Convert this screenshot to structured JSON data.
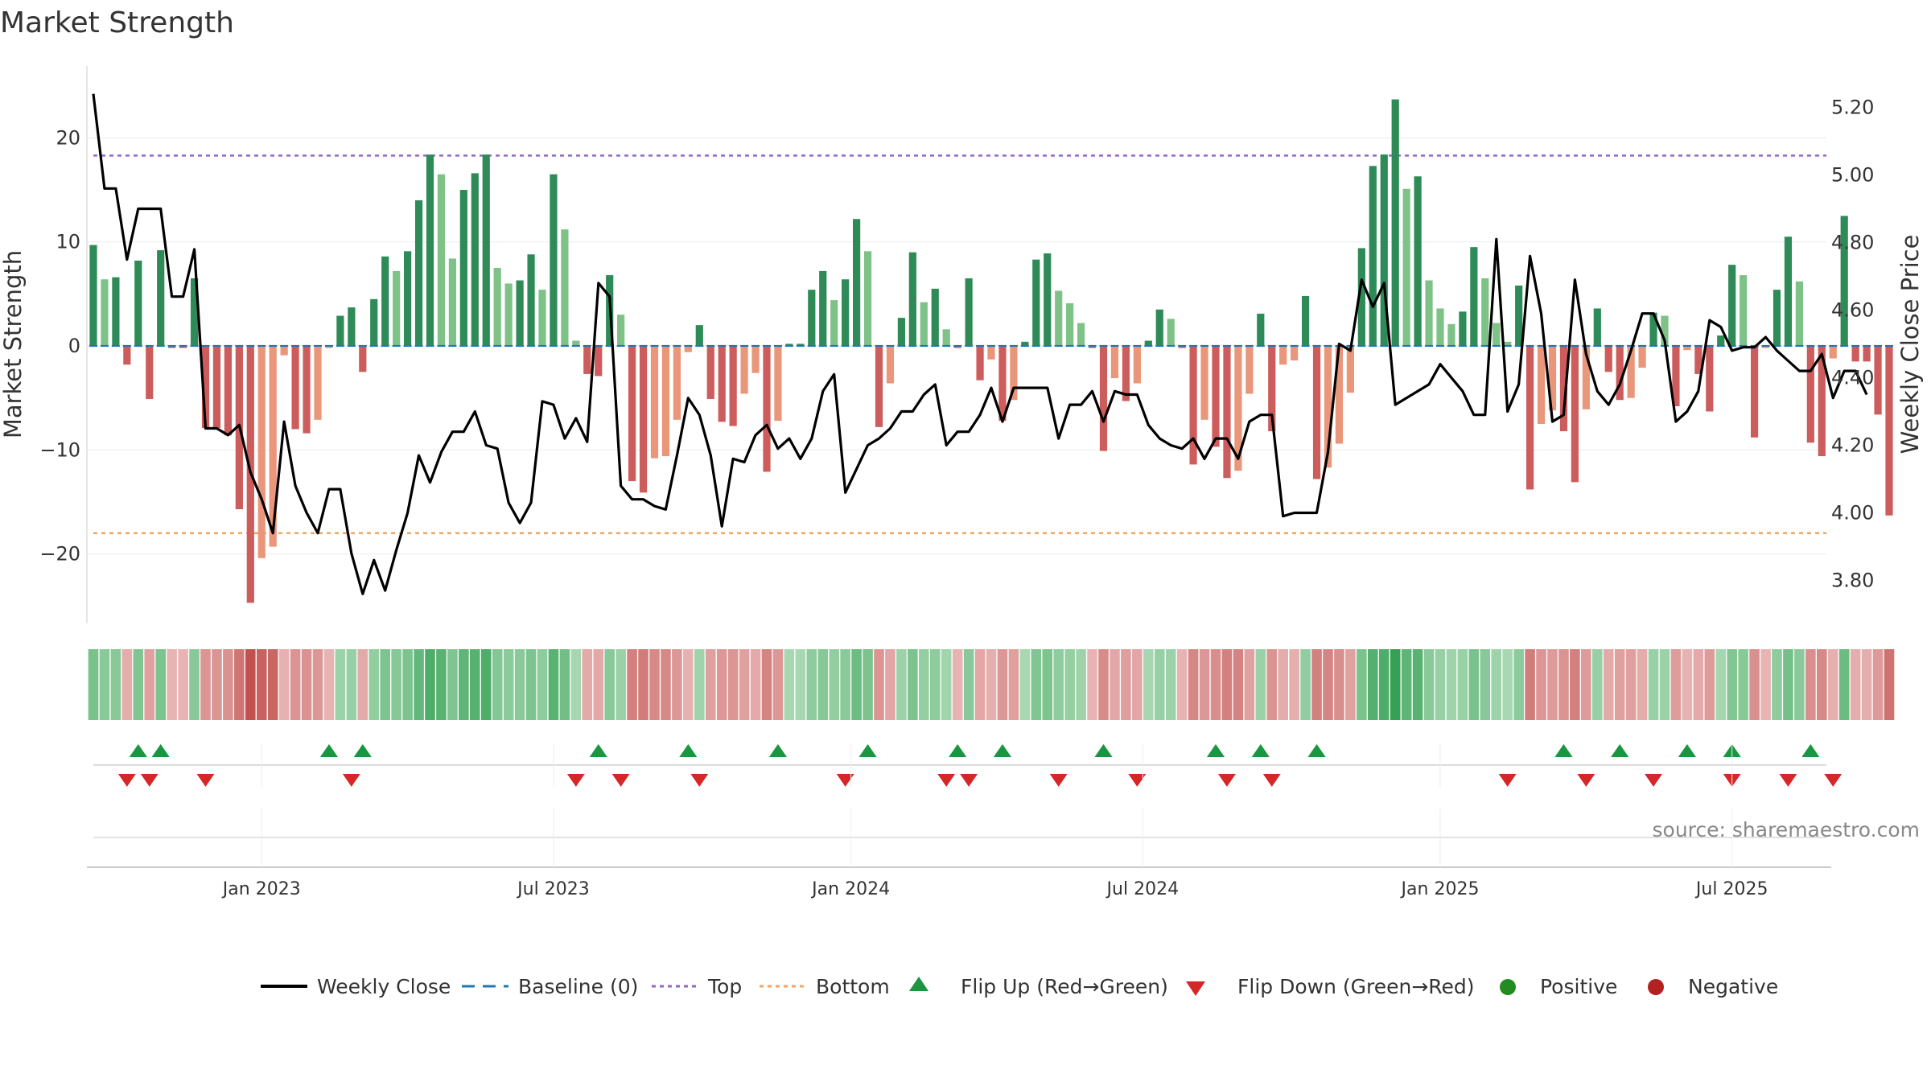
{
  "chart_data": {
    "type": "bar",
    "title": "Market Strength",
    "ylabel": "Market Strength",
    "y2label": "Weekly Close Price",
    "ylim": [
      -27,
      27
    ],
    "y2lim": [
      3.66,
      5.3
    ],
    "yticks": [
      -20,
      -10,
      0,
      10,
      20
    ],
    "y2ticks": [
      3.8,
      4.0,
      4.2,
      4.4,
      4.6,
      4.8,
      5.0,
      5.2
    ],
    "y2tick_labels": [
      "3.80",
      "4.00",
      "4.20",
      "4.40",
      "4.60",
      "4.80",
      "5.00",
      "5.20"
    ],
    "top_threshold": 18.3,
    "bottom_threshold": -18,
    "date_ticks": [
      {
        "label": "Jan 2023",
        "week": 15
      },
      {
        "label": "Jul 2023",
        "week": 41
      },
      {
        "label": "Jan 2024",
        "week": 67.5
      },
      {
        "label": "Jul 2024",
        "week": 93.5
      },
      {
        "label": "Jan 2025",
        "week": 120
      },
      {
        "label": "Jul 2025",
        "week": 146
      }
    ],
    "strength": [
      9.7,
      6.4,
      6.6,
      -1.8,
      8.2,
      -5.1,
      9.2,
      -0.2,
      -0.2,
      6.5,
      -7.9,
      -7.9,
      -8.6,
      -15.7,
      -24.7,
      -20.4,
      -19.3,
      -0.9,
      -8,
      -8.4,
      -7.1,
      -0.2,
      2.9,
      3.7,
      -2.5,
      4.5,
      8.6,
      7.2,
      9.1,
      14,
      18.4,
      16.5,
      8.4,
      15,
      16.6,
      18.4,
      7.5,
      6,
      6.3,
      8.8,
      5.4,
      16.5,
      11.2,
      0.5,
      -2.7,
      -2.9,
      6.8,
      3,
      -13,
      -14.1,
      -10.8,
      -10.6,
      -7.1,
      -0.6,
      2,
      -5.1,
      -7.3,
      -7.7,
      -4.6,
      -2.6,
      -12.1,
      -7.2,
      0.2,
      0.2,
      5.4,
      7.2,
      4.4,
      6.4,
      12.2,
      9.1,
      -7.8,
      -3.6,
      2.7,
      9,
      4.2,
      5.5,
      1.6,
      -0.2,
      6.5,
      -3.3,
      -1.3,
      -7.2,
      -5.2,
      0.4,
      8.3,
      8.9,
      5.3,
      4.1,
      2.2,
      -0.2,
      -10.1,
      -3.1,
      -5.3,
      -3.6,
      0.5,
      3.5,
      2.6,
      -0.2,
      -11.4,
      -7.1,
      -9.7,
      -12.7,
      -12,
      -4.6,
      3.1,
      -8.2,
      -1.8,
      -1.4,
      4.8,
      -12.8,
      -11.7,
      -9.4,
      -4.5,
      9.4,
      17.3,
      18.4,
      23.7,
      15.1,
      16.3,
      6.3,
      3.6,
      2.1,
      3.3,
      9.5,
      6.5,
      2.2,
      0.4,
      5.8,
      -13.8,
      -7.5,
      -6.2,
      -8.2,
      -13.1,
      -6.1,
      3.6,
      -2.5,
      -5.2,
      -5,
      -2.1,
      3.2,
      2.9,
      -5.8,
      -0.4,
      -2.7,
      -6.3,
      1,
      7.8,
      6.8,
      -8.8,
      -0.2,
      5.4,
      10.5,
      6.2,
      -9.3,
      -10.6,
      -1.2,
      12.5,
      -1.5,
      -1.5,
      -6.6,
      -16.3
    ],
    "close": [
      5.24,
      4.96,
      4.96,
      4.75,
      4.9,
      4.9,
      4.9,
      4.64,
      4.64,
      4.78,
      4.25,
      4.25,
      4.23,
      4.26,
      4.12,
      4.04,
      3.94,
      4.27,
      4.08,
      4.0,
      3.94,
      4.07,
      4.07,
      3.88,
      3.76,
      3.86,
      3.77,
      3.89,
      4.0,
      4.17,
      4.09,
      4.18,
      4.24,
      4.24,
      4.3,
      4.2,
      4.19,
      4.03,
      3.97,
      4.03,
      4.33,
      4.32,
      4.22,
      4.28,
      4.21,
      4.68,
      4.64,
      4.08,
      4.04,
      4.04,
      4.02,
      4.01,
      4.17,
      4.34,
      4.29,
      4.17,
      3.96,
      4.16,
      4.15,
      4.23,
      4.26,
      4.19,
      4.22,
      4.16,
      4.22,
      4.36,
      4.41,
      4.06,
      4.13,
      4.2,
      4.22,
      4.25,
      4.3,
      4.3,
      4.35,
      4.38,
      4.2,
      4.24,
      4.24,
      4.29,
      4.37,
      4.27,
      4.37,
      4.37,
      4.37,
      4.37,
      4.22,
      4.32,
      4.32,
      4.36,
      4.27,
      4.36,
      4.35,
      4.35,
      4.26,
      4.22,
      4.2,
      4.19,
      4.22,
      4.16,
      4.22,
      4.22,
      4.16,
      4.27,
      4.29,
      4.29,
      3.99,
      4.0,
      4.0,
      4.0,
      4.18,
      4.5,
      4.48,
      4.69,
      4.61,
      4.68,
      4.32,
      4.34,
      4.36,
      4.38,
      4.44,
      4.4,
      4.36,
      4.29,
      4.29,
      4.81,
      4.3,
      4.38,
      4.76,
      4.59,
      4.27,
      4.29,
      4.69,
      4.47,
      4.36,
      4.32,
      4.38,
      4.48,
      4.59,
      4.59,
      4.51,
      4.27,
      4.3,
      4.36,
      4.57,
      4.55,
      4.48,
      4.49,
      4.49,
      4.52,
      4.48,
      4.45,
      4.42,
      4.42,
      4.47,
      4.34,
      4.42,
      4.42,
      4.35
    ],
    "flip_up_weeks": [
      4,
      6,
      21,
      24,
      45,
      53,
      61,
      69,
      77,
      81,
      90,
      100,
      104,
      109,
      131,
      136,
      142,
      146,
      153
    ],
    "flip_down_weeks": [
      3,
      5,
      10,
      23,
      43,
      47,
      54,
      67,
      76,
      78,
      86,
      93,
      101,
      105,
      126,
      133,
      139,
      146,
      151,
      155
    ],
    "legend": [
      "Weekly Close",
      "Baseline (0)",
      "Top",
      "Bottom",
      "Flip Up (Red→Green)",
      "Flip Down (Green→Red)",
      "Positive",
      "Negative"
    ],
    "source": "source: sharemaestro.com",
    "colors": {
      "pos_dark": "#2e8b57",
      "pos_light": "#7fc287",
      "neg_dark": "#cd5c5c",
      "neg_light": "#e9967a",
      "close_line": "#000000",
      "baseline": "#1f77b4",
      "top": "#9467bd",
      "bottom": "#f4a460",
      "flip_up": "#1a9641",
      "flip_down": "#d62728",
      "positive_dot": "#228b22",
      "negative_dot": "#b22222"
    }
  }
}
